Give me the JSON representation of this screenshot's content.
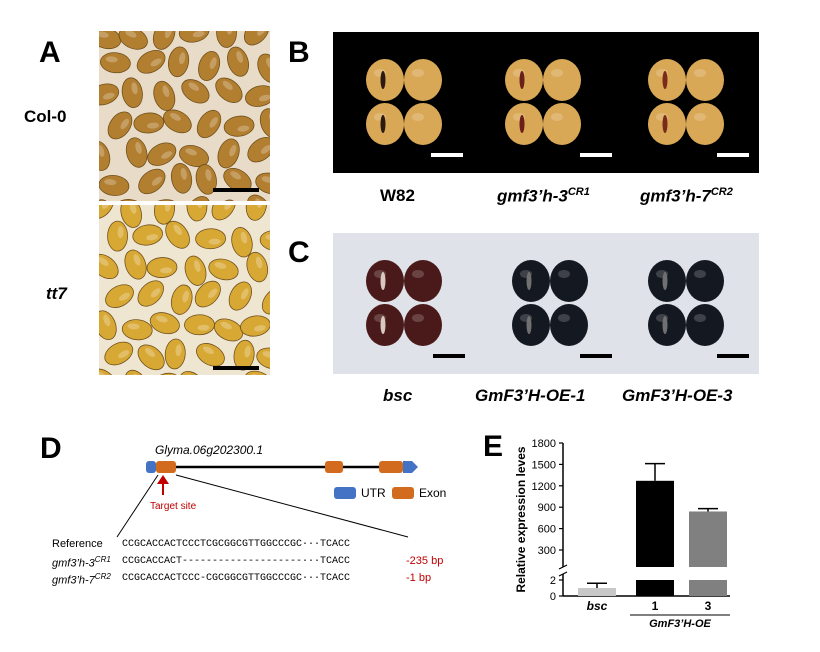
{
  "panels": {
    "A": {
      "letter": "A",
      "rows": [
        {
          "label": "Col-0",
          "italic": false,
          "seed_color": "#b07a28",
          "bg": "#e8dcc8"
        },
        {
          "label": "tt7",
          "italic": true,
          "seed_color": "#d6a52c",
          "bg": "#efe6d2"
        }
      ]
    },
    "B": {
      "letter": "B",
      "labels": [
        {
          "main": "W82",
          "sup": ""
        },
        {
          "main": "gmf3’h-3",
          "sup": "CR1"
        },
        {
          "main": "gmf3’h-7",
          "sup": "CR2"
        }
      ],
      "bg": "#000000",
      "seed_color": "#d9a856"
    },
    "C": {
      "letter": "C",
      "labels": [
        "bsc",
        "GmF3’H-OE-1",
        "GmF3’H-OE-3"
      ],
      "bg": "#dfe2e8",
      "seed_colors": [
        "#4a1a1a",
        "#141820",
        "#141820"
      ]
    },
    "D": {
      "letter": "D",
      "gene_name": "Glyma.06g202300.1",
      "legend": [
        {
          "label": "UTR",
          "color": "#4472c4"
        },
        {
          "label": "Exon",
          "color": "#d26b1e"
        }
      ],
      "target_label": "Target site",
      "alignment": [
        {
          "name": "Reference",
          "sup": "",
          "seq": "CCGCACCACTCCCTCGCGGCGTTGGCCCGC···TCACC",
          "note": ""
        },
        {
          "name": "gmf3’h-3",
          "sup": "CR1",
          "seq": "CCGCACCACT--------------------···TCACC",
          "note": "-235 bp"
        },
        {
          "name": "gmf3’h-7",
          "sup": "CR2",
          "seq": "CCGCACCACTCCC-CGCGGCGTTGGCCCGC···TCACC",
          "note": "-1 bp"
        }
      ]
    },
    "E": {
      "letter": "E"
    }
  },
  "chart_data": {
    "type": "bar",
    "categories": [
      "bsc",
      "1",
      "3"
    ],
    "group_label": "GmF3’H-OE",
    "ylabel": "Relative expression leves",
    "y_ticks_upper": [
      300,
      600,
      900,
      1200,
      1500,
      1800
    ],
    "y_ticks_lower": [
      0,
      2
    ],
    "ylim_upper": [
      300,
      1800
    ],
    "ylim_lower": [
      0,
      2
    ],
    "values": [
      1,
      1270,
      840
    ],
    "errors": [
      0.6,
      240,
      40
    ],
    "colors": [
      "#c8c8c8",
      "#000000",
      "#808080"
    ]
  }
}
